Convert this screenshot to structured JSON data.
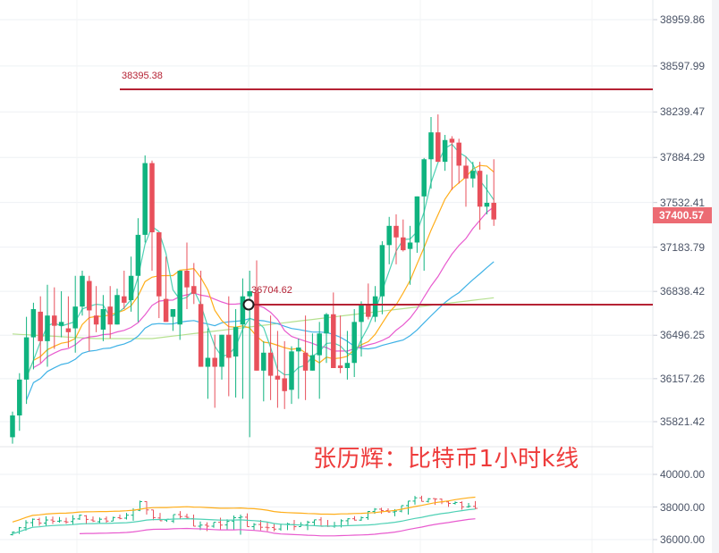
{
  "title": "张历辉：比特币1小时k线",
  "colors": {
    "up": "#0fb37f",
    "down": "#e8505b",
    "ma_fast": "#4fd1b5",
    "ma_orange": "#ffae1a",
    "ma_pink": "#e85bcf",
    "ma_blue": "#3fb2e6",
    "ma_green": "#b5e08f",
    "hline": "#b52234",
    "grid": "#eef0f4",
    "axis_text": "#4a5366",
    "price_tag_bg": "#ec6b73",
    "watermark": "#ee3b3b"
  },
  "main_axis": {
    "ticks": [
      "38959.86",
      "38597.99",
      "38239.47",
      "37884.29",
      "37532.41",
      "37183.79",
      "36838.42",
      "36496.25",
      "36157.26",
      "35821.42"
    ],
    "current_price": "37400.57"
  },
  "sub_axis": {
    "ticks": [
      "40000.00",
      "38000.00",
      "36000.00"
    ]
  },
  "horizontal_lines": [
    {
      "label": "38395.38",
      "price": 38395.38
    },
    {
      "label": "36704.62",
      "price": 36704.62
    }
  ],
  "chart_data": {
    "type": "candlestick",
    "title": "张历辉：比特币1小时k线",
    "xlabel": "",
    "ylabel": "",
    "ylim": [
      35700,
      39100
    ],
    "grid": true,
    "legend_position": "none",
    "series": [
      {
        "name": "BTC 1h",
        "ohlc": [
          [
            35700,
            35900,
            35650,
            35870
          ],
          [
            35870,
            36200,
            35750,
            36150
          ],
          [
            36150,
            36640,
            35960,
            36480
          ],
          [
            36480,
            36750,
            36230,
            36700
          ],
          [
            36680,
            36800,
            36280,
            36450
          ],
          [
            36450,
            36890,
            36250,
            36650
          ],
          [
            36650,
            36870,
            36390,
            36570
          ],
          [
            36570,
            36840,
            36480,
            36600
          ],
          [
            36550,
            36800,
            36400,
            36520
          ],
          [
            36550,
            36960,
            36360,
            36720
          ],
          [
            36720,
            37000,
            36650,
            36960
          ],
          [
            36920,
            36960,
            36370,
            36690
          ],
          [
            36650,
            36880,
            36520,
            36580
          ],
          [
            36540,
            36810,
            36450,
            36700
          ],
          [
            36720,
            36880,
            36470,
            36580
          ],
          [
            36580,
            36860,
            36640,
            36810
          ],
          [
            36800,
            37000,
            36700,
            36750
          ],
          [
            36770,
            37110,
            36680,
            36960
          ],
          [
            36960,
            37410,
            36600,
            37280
          ],
          [
            37280,
            37900,
            37220,
            37840
          ],
          [
            37840,
            37860,
            37000,
            37300
          ],
          [
            37300,
            37170,
            36630,
            36800
          ],
          [
            36780,
            37110,
            36650,
            36600
          ],
          [
            36640,
            36660,
            36530,
            36700
          ],
          [
            36580,
            37000,
            36460,
            37000
          ],
          [
            37000,
            37220,
            36700,
            36870
          ],
          [
            36880,
            37060,
            36740,
            36820
          ],
          [
            36740,
            37000,
            36430,
            36250
          ],
          [
            36250,
            36550,
            36000,
            36320
          ],
          [
            36320,
            36500,
            35930,
            36250
          ],
          [
            36250,
            36440,
            36150,
            36500
          ],
          [
            36500,
            36800,
            36020,
            36320
          ],
          [
            36330,
            36700,
            36010,
            36560
          ],
          [
            36580,
            36940,
            36000,
            36800
          ],
          [
            36800,
            37000,
            35700,
            36840
          ],
          [
            36830,
            37080,
            36430,
            36220
          ],
          [
            36220,
            36450,
            35980,
            36360
          ],
          [
            36360,
            36650,
            35990,
            36180
          ],
          [
            36180,
            36530,
            35930,
            36150
          ],
          [
            36160,
            36450,
            35920,
            36060
          ],
          [
            36070,
            36410,
            35960,
            36370
          ],
          [
            36370,
            36470,
            36000,
            36400
          ],
          [
            36360,
            36650,
            35990,
            36220
          ],
          [
            36220,
            36510,
            36250,
            36340
          ],
          [
            36340,
            36600,
            36000,
            36510
          ],
          [
            36510,
            36670,
            36280,
            36660
          ],
          [
            36660,
            36830,
            36320,
            36240
          ],
          [
            36260,
            36650,
            36200,
            36240
          ],
          [
            36240,
            36530,
            36150,
            36280
          ],
          [
            36280,
            36700,
            36170,
            36600
          ],
          [
            36600,
            36760,
            36330,
            36730
          ],
          [
            36730,
            36900,
            36620,
            36640
          ],
          [
            36640,
            36880,
            36600,
            36800
          ],
          [
            36800,
            37230,
            36660,
            37200
          ],
          [
            37200,
            37420,
            37050,
            37350
          ],
          [
            37350,
            37440,
            37050,
            37260
          ],
          [
            37260,
            37400,
            37150,
            37160
          ],
          [
            37170,
            37350,
            36890,
            37220
          ],
          [
            37220,
            37540,
            37140,
            37580
          ],
          [
            37580,
            37880,
            37000,
            37870
          ],
          [
            37870,
            38200,
            37640,
            38080
          ],
          [
            38080,
            38220,
            37920,
            37850
          ],
          [
            37850,
            38060,
            37780,
            38020
          ],
          [
            38030,
            38050,
            37630,
            38000
          ],
          [
            38000,
            38030,
            37680,
            37820
          ],
          [
            37820,
            37890,
            37500,
            37720
          ],
          [
            37720,
            37850,
            37650,
            37780
          ],
          [
            37780,
            37850,
            37320,
            37500
          ],
          [
            37500,
            37750,
            37440,
            37530
          ],
          [
            37530,
            37870,
            37350,
            37400
          ]
        ]
      },
      {
        "name": "MA fast",
        "color": "#4fd1b5"
      },
      {
        "name": "MA orange",
        "color": "#ffae1a"
      },
      {
        "name": "MA pink",
        "color": "#e85bcf"
      },
      {
        "name": "MA blue",
        "color": "#3fb2e6"
      },
      {
        "name": "MA light green",
        "color": "#b5e08f"
      }
    ],
    "annotations": [
      {
        "type": "hline",
        "value": 38395.38,
        "label": "38395.38"
      },
      {
        "type": "hline",
        "value": 36704.62,
        "label": "36704.62"
      },
      {
        "type": "last_price",
        "value": 37400.57
      }
    ],
    "sub_panel": {
      "type": "ohlc_bars_with_bollinger",
      "ylim": [
        35700,
        40500
      ],
      "ticks": [
        40000,
        38000,
        36000
      ],
      "bands": [
        "upper (orange)",
        "middle (teal)",
        "lower (pink)"
      ]
    }
  }
}
